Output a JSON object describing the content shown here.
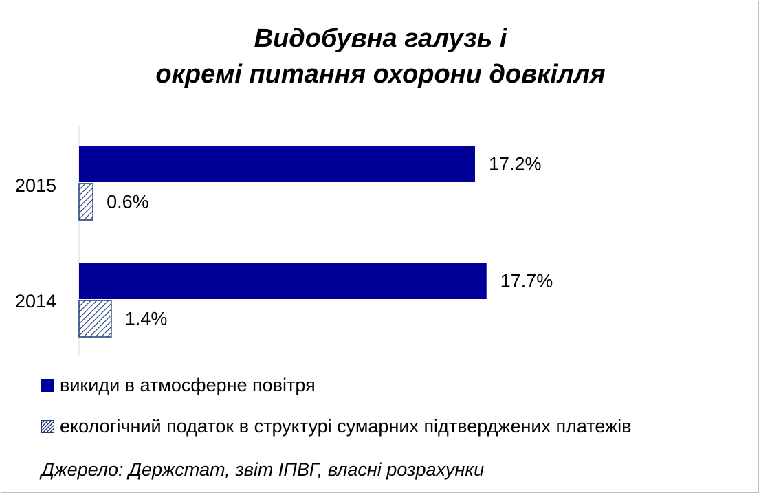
{
  "chart_data": {
    "type": "bar",
    "orientation": "horizontal",
    "title_lines": [
      "Видобувна галузь і",
      "окремі питання охорони довкілля"
    ],
    "categories": [
      "2015",
      "2014"
    ],
    "series": [
      {
        "name": "викиди в атмосферне повітря",
        "values": [
          17.2,
          17.7
        ],
        "labels": [
          "17.2%",
          "17.7%"
        ],
        "color": "#000099",
        "pattern": "solid"
      },
      {
        "name": "екологічний податок в структурі сумарних підтверджених платежів",
        "values": [
          0.6,
          1.4
        ],
        "labels": [
          "0.6%",
          "1.4%"
        ],
        "color": "#1f3a7a",
        "pattern": "diagonal-hatch"
      }
    ],
    "xlim": [
      0,
      25
    ],
    "grid": false,
    "legend_position": "bottom",
    "source": "Джерело: Держстат, звіт ІПВГ, власні розрахунки"
  }
}
